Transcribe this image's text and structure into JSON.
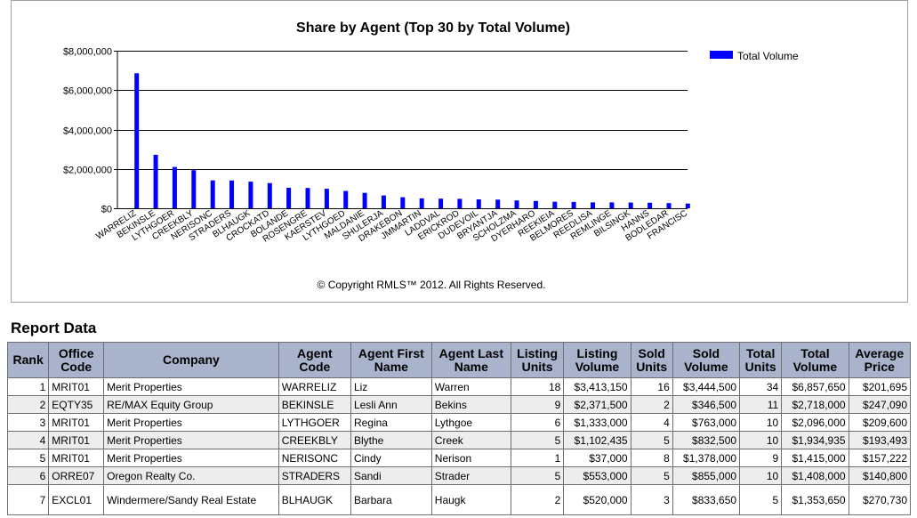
{
  "chart_data": {
    "type": "bar",
    "title": "Share by Agent (Top 30 by Total Volume)",
    "legend": {
      "position": "top-right",
      "label": "Total Volume"
    },
    "series": [
      {
        "name": "Total Volume",
        "color": "#0000ff"
      }
    ],
    "ylim": [
      0,
      8000000
    ],
    "yticks": [
      0,
      2000000,
      4000000,
      6000000,
      8000000
    ],
    "ytick_labels": [
      "$0",
      "$2,000,000",
      "$4,000,000",
      "$6,000,000",
      "$8,000,000"
    ],
    "grid": true,
    "categories": [
      "WARRELIZ",
      "BEKINSLE",
      "LYTHGOER",
      "CREEKBLY",
      "NERISONC",
      "STRADERS",
      "BLHAUGK",
      "CROCKATD",
      "BOLANDE",
      "ROSENGRE",
      "KAERSTEV",
      "LYTHGOED",
      "MALDANIE",
      "SHULERJA",
      "DRAKEBON",
      "JMMARTIN",
      "LADDVAL",
      "ERICKROD",
      "DUDEVOIL",
      "BRYANTJA",
      "SCHOLZMA",
      "DYERHARO",
      "REEKIEIA",
      "BELMORES",
      "REEDLISA",
      "REMLINGE",
      "BILSINGK",
      "HANNS",
      "BODLEDAR",
      "FRANCISC"
    ],
    "values": [
      6857650,
      2718000,
      2096000,
      1934935,
      1415000,
      1408000,
      1353650,
      1280000,
      1040000,
      1030000,
      990000,
      880000,
      780000,
      650000,
      560000,
      500000,
      490000,
      480000,
      450000,
      440000,
      400000,
      370000,
      330000,
      320000,
      300000,
      300000,
      290000,
      280000,
      260000,
      240000
    ]
  },
  "copyright": "© Copyright RMLS™ 2012.  All Rights Reserved.",
  "report": {
    "heading": "Report Data",
    "columns": [
      [
        "Rank"
      ],
      [
        "Office",
        "Code"
      ],
      [
        "Company"
      ],
      [
        "Agent",
        "Code"
      ],
      [
        "Agent First",
        "Name"
      ],
      [
        "Agent Last",
        "Name"
      ],
      [
        "Listing",
        "Units"
      ],
      [
        "Listing",
        "Volume"
      ],
      [
        "Sold",
        "Units"
      ],
      [
        "Sold",
        "Volume"
      ],
      [
        "Total",
        "Units"
      ],
      [
        "Total",
        "Volume"
      ],
      [
        "Average",
        "Price"
      ]
    ],
    "rows": [
      [
        "1",
        "MRIT01",
        "Merit Properties",
        "WARRELIZ",
        "Liz",
        "Warren",
        "18",
        "$3,413,150",
        "16",
        "$3,444,500",
        "34",
        "$6,857,650",
        "$201,695"
      ],
      [
        "2",
        "EQTY35",
        "RE/MAX Equity Group",
        "BEKINSLE",
        "Lesli Ann",
        "Bekins",
        "9",
        "$2,371,500",
        "2",
        "$346,500",
        "11",
        "$2,718,000",
        "$247,090"
      ],
      [
        "3",
        "MRIT01",
        "Merit Properties",
        "LYTHGOER",
        "Regina",
        "Lythgoe",
        "6",
        "$1,333,000",
        "4",
        "$763,000",
        "10",
        "$2,096,000",
        "$209,600"
      ],
      [
        "4",
        "MRIT01",
        "Merit Properties",
        "CREEKBLY",
        "Blythe",
        "Creek",
        "5",
        "$1,102,435",
        "5",
        "$832,500",
        "10",
        "$1,934,935",
        "$193,493"
      ],
      [
        "5",
        "MRIT01",
        "Merit Properties",
        "NERISONC",
        "Cindy",
        "Nerison",
        "1",
        "$37,000",
        "8",
        "$1,378,000",
        "9",
        "$1,415,000",
        "$157,222"
      ],
      [
        "6",
        "ORRE07",
        "Oregon Realty Co.",
        "STRADERS",
        "Sandi",
        "Strader",
        "5",
        "$553,000",
        "5",
        "$855,000",
        "10",
        "$1,408,000",
        "$140,800"
      ],
      [
        "7",
        "EXCL01",
        "Windermere/Sandy Real Estate",
        "BLHAUGK",
        "Barbara",
        "Haugk",
        "2",
        "$520,000",
        "3",
        "$833,650",
        "5",
        "$1,353,650",
        "$270,730"
      ]
    ]
  }
}
